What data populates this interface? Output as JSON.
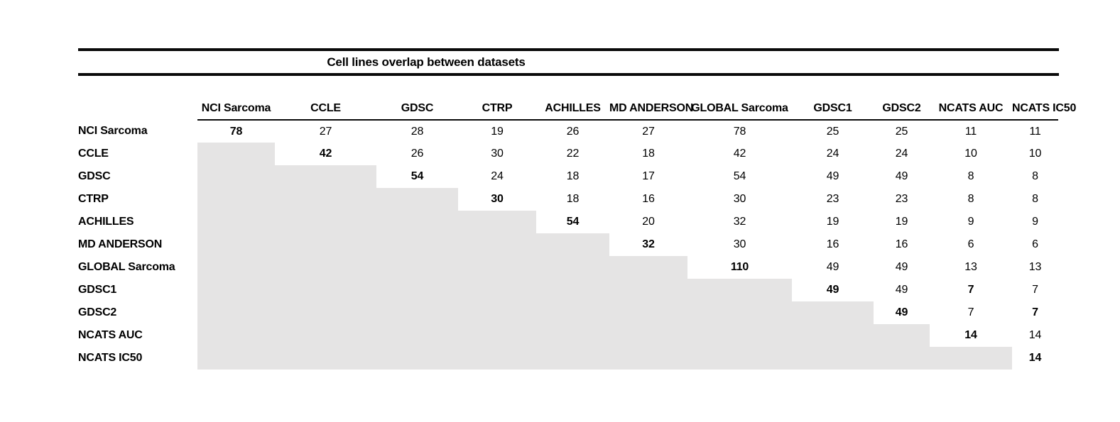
{
  "title": "Cell lines overlap between datasets",
  "colors": {
    "shade": "#e5e4e4",
    "rule": "#0a0a0a",
    "text": "#000000"
  },
  "table": {
    "columns": [
      "NCI Sarcoma",
      "CCLE",
      "GDSC",
      "CTRP",
      "ACHILLES",
      "MD ANDERSON",
      "GLOBAL Sarcoma",
      "GDSC1",
      "GDSC2",
      "NCATS AUC",
      "NCATS IC50"
    ],
    "rows": [
      "NCI Sarcoma",
      "CCLE",
      "GDSC",
      "CTRP",
      "ACHILLES",
      "MD ANDERSON",
      "GLOBAL Sarcoma",
      "GDSC1",
      "GDSC2",
      "NCATS AUC",
      "NCATS IC50"
    ],
    "matrix": [
      [
        {
          "v": "78",
          "b": true
        },
        {
          "v": "27"
        },
        {
          "v": "28"
        },
        {
          "v": "19"
        },
        {
          "v": "26"
        },
        {
          "v": "27"
        },
        {
          "v": "78"
        },
        {
          "v": "25"
        },
        {
          "v": "25"
        },
        {
          "v": "11"
        },
        {
          "v": "11"
        }
      ],
      [
        null,
        {
          "v": "42",
          "b": true
        },
        {
          "v": "26"
        },
        {
          "v": "30"
        },
        {
          "v": "22"
        },
        {
          "v": "18"
        },
        {
          "v": "42"
        },
        {
          "v": "24"
        },
        {
          "v": "24"
        },
        {
          "v": "10"
        },
        {
          "v": "10"
        }
      ],
      [
        null,
        null,
        {
          "v": "54",
          "b": true
        },
        {
          "v": "24"
        },
        {
          "v": "18"
        },
        {
          "v": "17"
        },
        {
          "v": "54"
        },
        {
          "v": "49"
        },
        {
          "v": "49"
        },
        {
          "v": "8"
        },
        {
          "v": "8"
        }
      ],
      [
        null,
        null,
        null,
        {
          "v": "30",
          "b": true
        },
        {
          "v": "18"
        },
        {
          "v": "16"
        },
        {
          "v": "30"
        },
        {
          "v": "23"
        },
        {
          "v": "23"
        },
        {
          "v": "8"
        },
        {
          "v": "8"
        }
      ],
      [
        null,
        null,
        null,
        null,
        {
          "v": "54",
          "b": true
        },
        {
          "v": "20"
        },
        {
          "v": "32"
        },
        {
          "v": "19"
        },
        {
          "v": "19"
        },
        {
          "v": "9"
        },
        {
          "v": "9"
        }
      ],
      [
        null,
        null,
        null,
        null,
        null,
        {
          "v": "32",
          "b": true
        },
        {
          "v": "30"
        },
        {
          "v": "16"
        },
        {
          "v": "16"
        },
        {
          "v": "6"
        },
        {
          "v": "6"
        }
      ],
      [
        null,
        null,
        null,
        null,
        null,
        null,
        {
          "v": "110",
          "b": true
        },
        {
          "v": "49"
        },
        {
          "v": "49"
        },
        {
          "v": "13"
        },
        {
          "v": "13"
        }
      ],
      [
        null,
        null,
        null,
        null,
        null,
        null,
        null,
        {
          "v": "49",
          "b": true
        },
        {
          "v": "49"
        },
        {
          "v": "7",
          "b": true
        },
        {
          "v": "7"
        }
      ],
      [
        null,
        null,
        null,
        null,
        null,
        null,
        null,
        null,
        {
          "v": "49",
          "b": true
        },
        {
          "v": "7"
        },
        {
          "v": "7",
          "b": true
        }
      ],
      [
        null,
        null,
        null,
        null,
        null,
        null,
        null,
        null,
        null,
        {
          "v": "14",
          "b": true
        },
        {
          "v": "14"
        }
      ],
      [
        null,
        null,
        null,
        null,
        null,
        null,
        null,
        null,
        null,
        null,
        {
          "v": "14",
          "b": true
        }
      ]
    ]
  }
}
